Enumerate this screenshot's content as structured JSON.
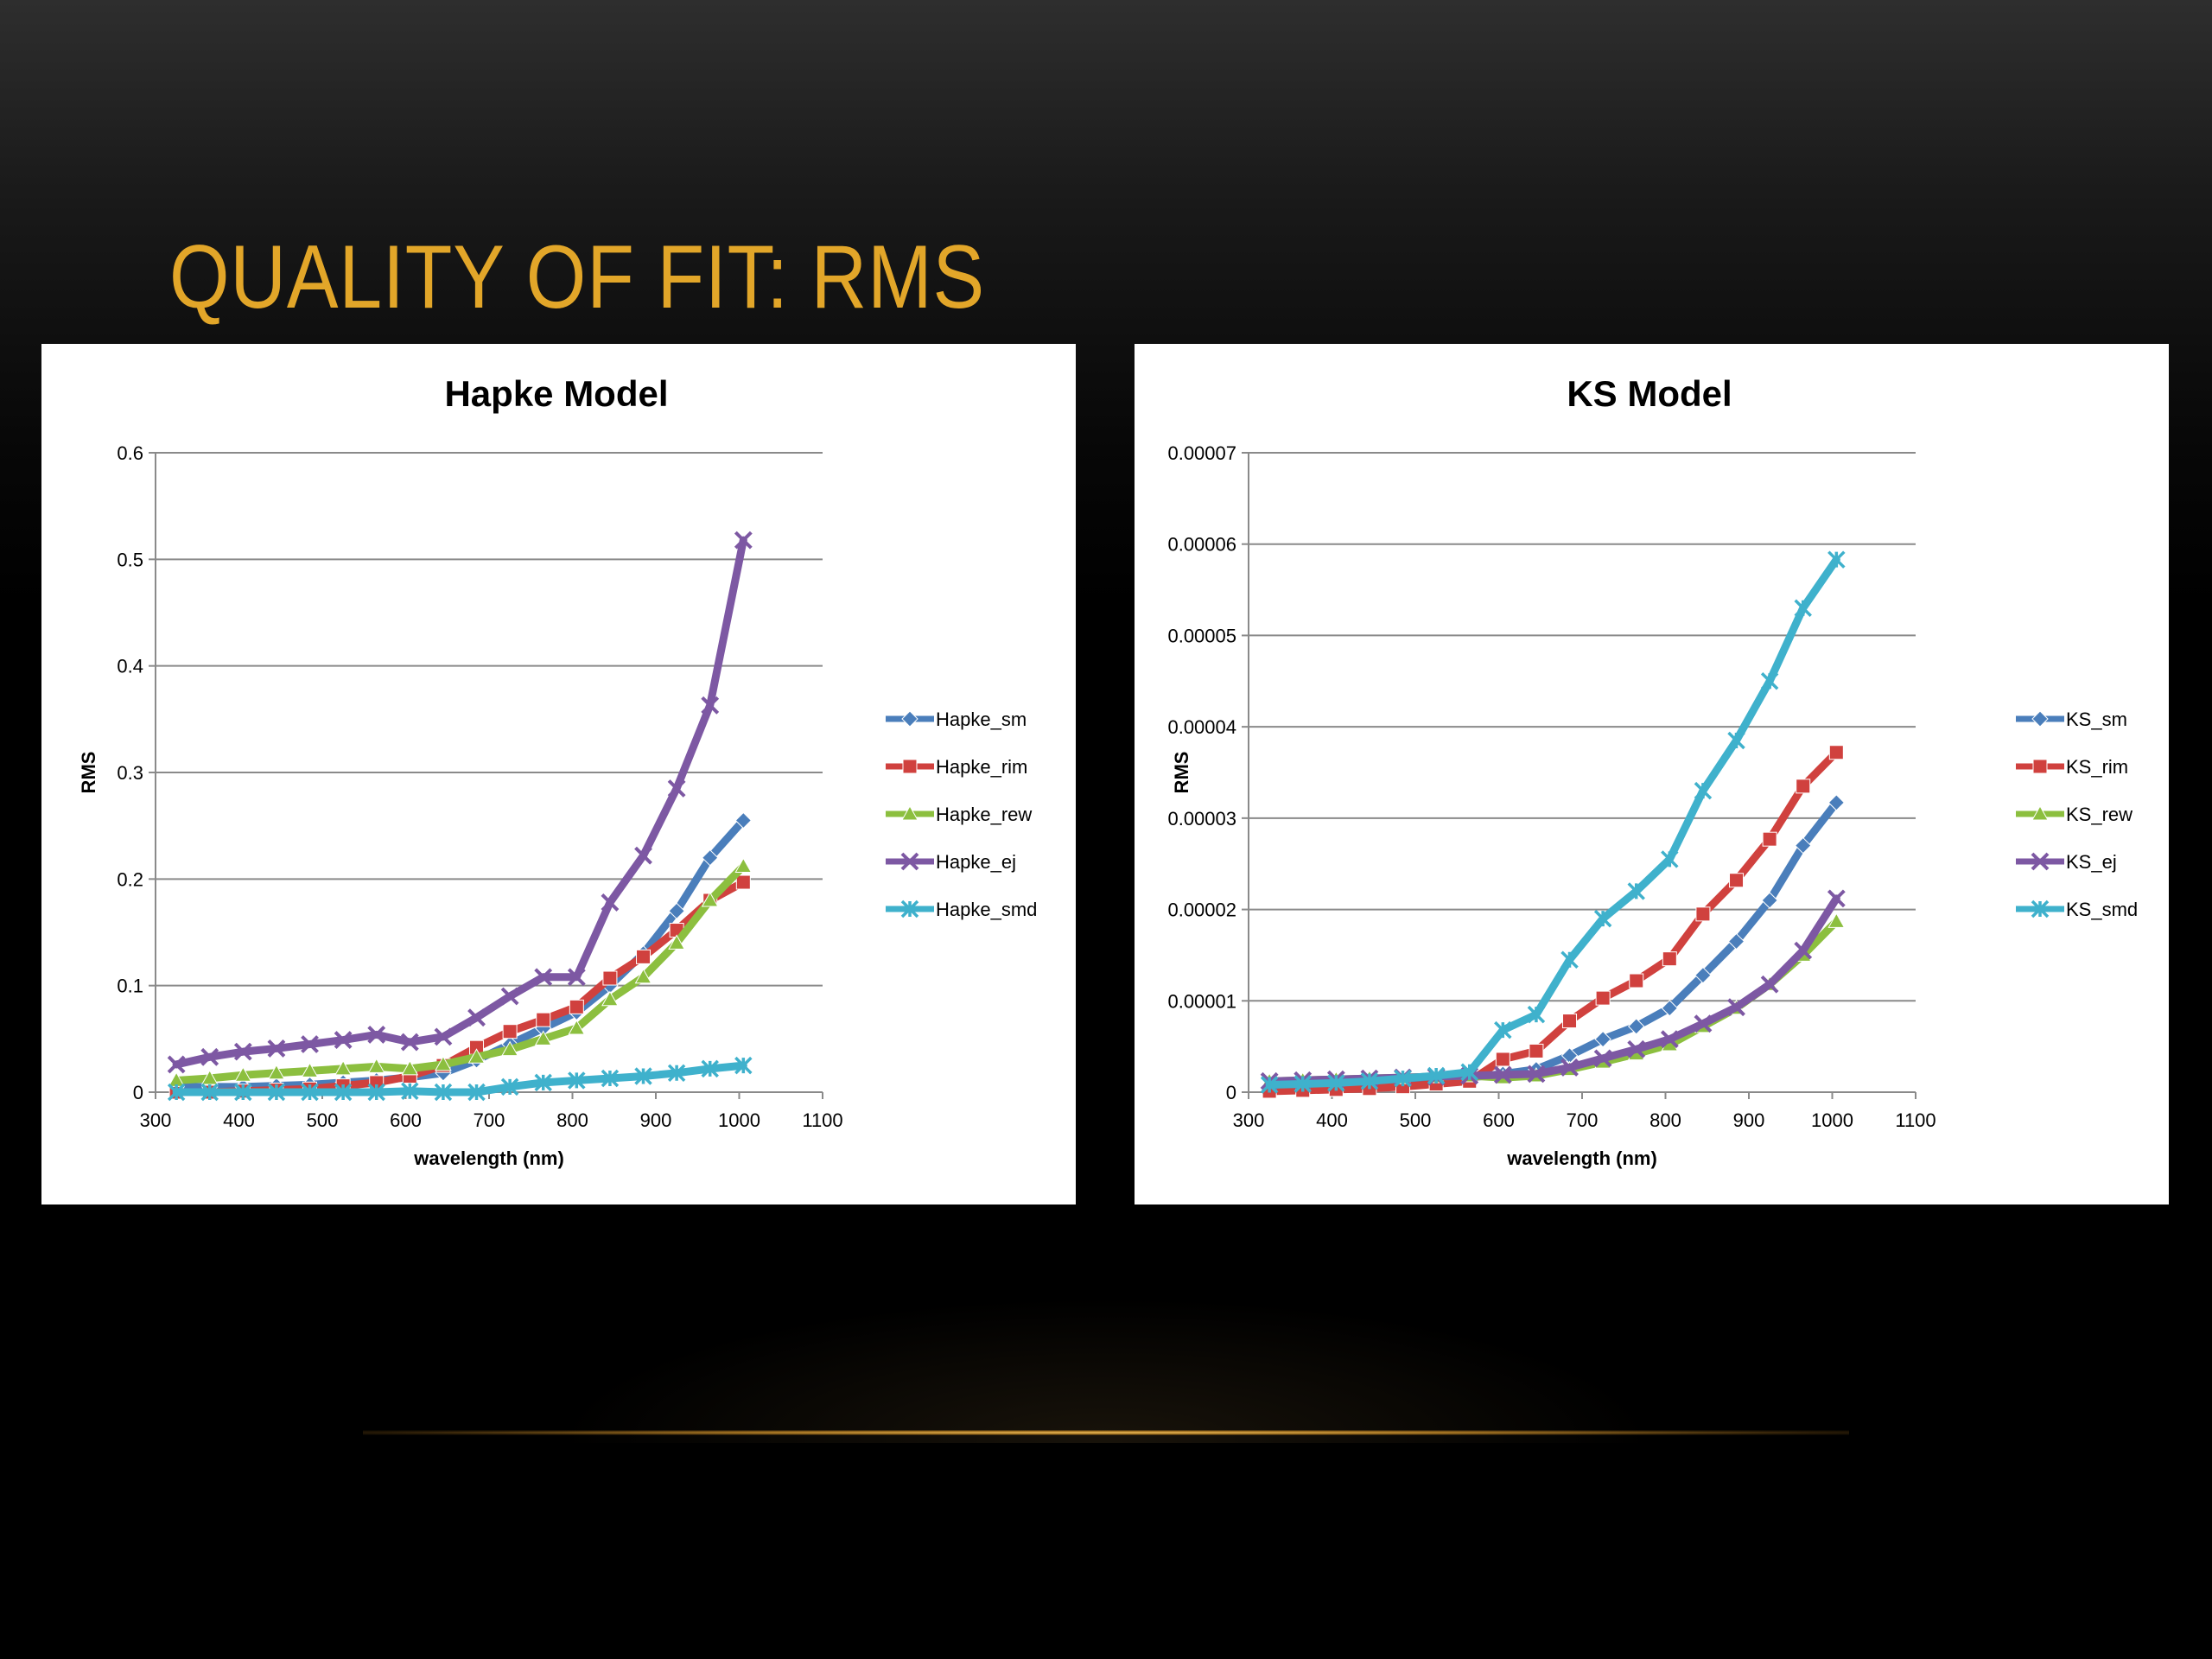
{
  "slide": {
    "title": "QUALITY OF FIT: RMS"
  },
  "colors": {
    "title": "#e2a629",
    "sm": "#4a7ebb",
    "rim": "#d0413e",
    "rew": "#8cbf3f",
    "ej": "#7d58a3",
    "smd": "#3fb1cc"
  },
  "chart_data": [
    {
      "type": "line",
      "title": "Hapke Model",
      "xlabel": "wavelength (nm)",
      "ylabel": "RMS",
      "xlim": [
        300,
        1100
      ],
      "ylim": [
        0,
        0.6
      ],
      "xticks": [
        300,
        400,
        500,
        600,
        700,
        800,
        900,
        1000,
        1100
      ],
      "xtick_labels": [
        "300",
        "400",
        "500",
        "600",
        "700",
        "800",
        "900",
        "1000",
        "1100"
      ],
      "yticks": [
        0,
        0.1,
        0.2,
        0.3,
        0.4,
        0.5,
        0.6
      ],
      "ytick_labels": [
        "0",
        "0.1",
        "0.2",
        "0.3",
        "0.4",
        "0.5",
        "0.6"
      ],
      "grid": true,
      "legend": "right",
      "x": [
        325,
        365,
        405,
        445,
        485,
        525,
        565,
        605,
        645,
        685,
        725,
        765,
        805,
        845,
        885,
        925,
        965,
        1005
      ],
      "series": [
        {
          "name": "Hapke_sm",
          "color": "#4a7ebb",
          "marker": "diamond",
          "values": [
            0.005,
            0.005,
            0.005,
            0.006,
            0.007,
            0.009,
            0.011,
            0.014,
            0.018,
            0.03,
            0.045,
            0.06,
            0.075,
            0.1,
            0.13,
            0.17,
            0.22,
            0.255
          ]
        },
        {
          "name": "Hapke_rim",
          "color": "#d0413e",
          "marker": "square",
          "values": [
            0.0,
            0.0,
            0.001,
            0.002,
            0.003,
            0.006,
            0.009,
            0.015,
            0.025,
            0.042,
            0.057,
            0.068,
            0.08,
            0.107,
            0.127,
            0.152,
            0.18,
            0.197
          ]
        },
        {
          "name": "Hapke_rew",
          "color": "#8cbf3f",
          "marker": "triangle",
          "values": [
            0.011,
            0.013,
            0.016,
            0.018,
            0.02,
            0.022,
            0.024,
            0.022,
            0.026,
            0.033,
            0.04,
            0.05,
            0.06,
            0.087,
            0.108,
            0.14,
            0.18,
            0.212
          ]
        },
        {
          "name": "Hapke_ej",
          "color": "#7d58a3",
          "marker": "x",
          "values": [
            0.026,
            0.033,
            0.038,
            0.041,
            0.045,
            0.049,
            0.054,
            0.047,
            0.052,
            0.07,
            0.09,
            0.108,
            0.108,
            0.178,
            0.222,
            0.285,
            0.363,
            0.518
          ]
        },
        {
          "name": "Hapke_smd",
          "color": "#3fb1cc",
          "marker": "star",
          "values": [
            0.0,
            0.0,
            0.0,
            0.0,
            0.0,
            0.0,
            0.0,
            0.001,
            0.0,
            0.0,
            0.005,
            0.009,
            0.011,
            0.013,
            0.015,
            0.018,
            0.022,
            0.025
          ]
        }
      ]
    },
    {
      "type": "line",
      "title": "KS Model",
      "xlabel": "wavelength (nm)",
      "ylabel": "RMS",
      "xlim": [
        300,
        1100
      ],
      "ylim": [
        0,
        7e-05
      ],
      "xticks": [
        300,
        400,
        500,
        600,
        700,
        800,
        900,
        1000,
        1100
      ],
      "xtick_labels": [
        "300",
        "400",
        "500",
        "600",
        "700",
        "800",
        "900",
        "1000",
        "1100"
      ],
      "yticks": [
        0,
        1e-05,
        2e-05,
        3e-05,
        4e-05,
        5e-05,
        6e-05,
        7e-05
      ],
      "ytick_labels": [
        "0",
        "0.00001",
        "0.00002",
        "0.00003",
        "0.00004",
        "0.00005",
        "0.00006",
        "0.00007"
      ],
      "grid": true,
      "legend": "right",
      "x": [
        325,
        365,
        405,
        445,
        485,
        525,
        565,
        605,
        645,
        685,
        725,
        765,
        805,
        845,
        885,
        925,
        965,
        1005
      ],
      "series": [
        {
          "name": "KS_sm",
          "color": "#4a7ebb",
          "marker": "diamond",
          "values": [
            5e-07,
            6e-07,
            7e-07,
            8e-07,
            1e-06,
            1.3e-06,
            1.6e-06,
            2e-06,
            2.5e-06,
            4e-06,
            5.8e-06,
            7.2e-06,
            9.2e-06,
            1.28e-05,
            1.65e-05,
            2.1e-05,
            2.7e-05,
            3.17e-05
          ]
        },
        {
          "name": "KS_rim",
          "color": "#d0413e",
          "marker": "square",
          "values": [
            1e-07,
            2e-07,
            3e-07,
            4e-07,
            6e-07,
            9e-07,
            1.2e-06,
            3.6e-06,
            4.5e-06,
            7.8e-06,
            1.03e-05,
            1.22e-05,
            1.46e-05,
            1.95e-05,
            2.32e-05,
            2.77e-05,
            3.35e-05,
            3.72e-05
          ]
        },
        {
          "name": "KS_rew",
          "color": "#8cbf3f",
          "marker": "triangle",
          "values": [
            1.2e-06,
            1.3e-06,
            1.4e-06,
            1.5e-06,
            1.6e-06,
            1.7e-06,
            1.8e-06,
            1.6e-06,
            1.8e-06,
            2.5e-06,
            3.3e-06,
            4.2e-06,
            5.2e-06,
            7.2e-06,
            9.2e-06,
            1.18e-05,
            1.5e-05,
            1.87e-05
          ]
        },
        {
          "name": "KS_ej",
          "color": "#7d58a3",
          "marker": "x",
          "values": [
            1.2e-06,
            1.3e-06,
            1.4e-06,
            1.5e-06,
            1.6e-06,
            1.7e-06,
            1.8e-06,
            1.9e-06,
            2e-06,
            2.7e-06,
            3.7e-06,
            4.7e-06,
            5.8e-06,
            7.5e-06,
            9.3e-06,
            1.18e-05,
            1.55e-05,
            2.12e-05
          ]
        },
        {
          "name": "KS_smd",
          "color": "#3fb1cc",
          "marker": "star",
          "values": [
            8e-07,
            9e-07,
            1e-06,
            1.2e-06,
            1.5e-06,
            1.8e-06,
            2.2e-06,
            6.8e-06,
            8.5e-06,
            1.45e-05,
            1.9e-05,
            2.2e-05,
            2.55e-05,
            3.3e-05,
            3.85e-05,
            4.5e-05,
            5.3e-05,
            5.83e-05
          ]
        }
      ]
    }
  ]
}
